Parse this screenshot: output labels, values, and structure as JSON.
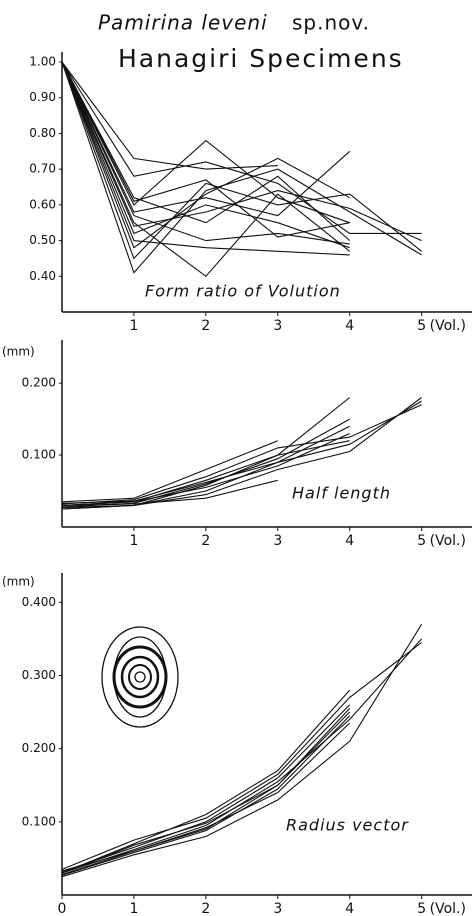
{
  "header": {
    "species": "Pamirina leveni",
    "suffix": "sp.nov.",
    "title": "Hanagiri Specimens"
  },
  "chart_data": [
    {
      "type": "line",
      "annotation": "Form ratio of Volution",
      "x_label": "(Vol.)",
      "color": "#111111",
      "x": [
        0,
        1,
        2,
        3,
        4,
        5
      ],
      "xlim": [
        0,
        5.7
      ],
      "xticks": [
        1,
        2,
        3,
        4,
        5
      ],
      "ylim": [
        0.3,
        1.0
      ],
      "yticks": [
        {
          "value": 0.4,
          "label": "0.40"
        },
        {
          "value": 0.5,
          "label": "0.50"
        },
        {
          "value": 0.6,
          "label": "0.60"
        },
        {
          "value": 0.7,
          "label": "0.70"
        },
        {
          "value": 0.8,
          "label": "0.80"
        },
        {
          "value": 0.9,
          "label": "0.90"
        },
        {
          "value": 1.0,
          "label": "1.00"
        }
      ],
      "series": [
        {
          "values": [
            1.0,
            0.73,
            0.7,
            0.71,
            null,
            null
          ]
        },
        {
          "values": [
            1.0,
            0.6,
            0.78,
            0.62,
            0.55,
            null
          ]
        },
        {
          "values": [
            1.0,
            0.41,
            0.64,
            0.7,
            0.58,
            0.46
          ]
        },
        {
          "values": [
            1.0,
            0.55,
            0.4,
            0.63,
            0.47,
            null
          ]
        },
        {
          "values": [
            1.0,
            0.5,
            0.48,
            0.47,
            0.46,
            null
          ]
        },
        {
          "values": [
            1.0,
            0.58,
            0.62,
            0.57,
            0.75,
            null
          ]
        },
        {
          "values": [
            1.0,
            0.68,
            0.72,
            0.66,
            0.52,
            0.52
          ]
        },
        {
          "values": [
            1.0,
            0.52,
            0.6,
            0.55,
            0.48,
            null
          ]
        },
        {
          "values": [
            1.0,
            0.45,
            0.66,
            0.6,
            0.63,
            0.47
          ]
        },
        {
          "values": [
            1.0,
            0.62,
            0.55,
            0.68,
            0.5,
            null
          ]
        },
        {
          "values": [
            1.0,
            0.57,
            0.5,
            0.52,
            0.49,
            null
          ]
        },
        {
          "values": [
            1.0,
            0.54,
            0.58,
            0.64,
            0.59,
            0.5
          ]
        },
        {
          "values": [
            1.0,
            0.61,
            0.67,
            0.51,
            0.55,
            null
          ]
        },
        {
          "values": [
            1.0,
            0.48,
            0.63,
            0.73,
            0.62,
            null
          ]
        }
      ]
    },
    {
      "type": "line",
      "annotation": "Half length",
      "x_label": "(Vol.)",
      "y_label": "(mm)",
      "color": "#111111",
      "x": [
        0,
        1,
        2,
        3,
        4,
        5
      ],
      "xlim": [
        0,
        5.7
      ],
      "xticks": [
        1,
        2,
        3,
        4,
        5
      ],
      "ylim": [
        0,
        0.26
      ],
      "yticks": [
        {
          "value": 0.1,
          "label": "0.100"
        },
        {
          "value": 0.2,
          "label": "0.200"
        }
      ],
      "series": [
        {
          "values": [
            0.035,
            0.04,
            0.08,
            0.12,
            null,
            null
          ]
        },
        {
          "values": [
            0.03,
            0.035,
            0.065,
            0.1,
            0.18,
            null
          ]
        },
        {
          "values": [
            0.028,
            0.033,
            0.06,
            0.095,
            0.15,
            null
          ]
        },
        {
          "values": [
            0.025,
            0.03,
            0.05,
            0.09,
            0.14,
            null
          ]
        },
        {
          "values": [
            0.03,
            0.035,
            0.055,
            0.085,
            0.13,
            null
          ]
        },
        {
          "values": [
            0.032,
            0.038,
            0.07,
            0.11,
            0.125,
            0.17
          ]
        },
        {
          "values": [
            0.027,
            0.03,
            0.045,
            0.08,
            0.105,
            0.18
          ]
        },
        {
          "values": [
            0.03,
            0.032,
            0.04,
            0.065,
            null,
            null
          ]
        },
        {
          "values": [
            0.025,
            0.03,
            0.058,
            0.1,
            0.12,
            null
          ]
        },
        {
          "values": [
            0.033,
            0.036,
            0.062,
            0.09,
            0.115,
            0.175
          ]
        }
      ]
    },
    {
      "type": "line",
      "annotation": "Radius vector",
      "x_label": "(Vol.)",
      "y_label": "(mm)",
      "color": "#111111",
      "x": [
        0,
        1,
        2,
        3,
        4,
        5
      ],
      "xlim": [
        0,
        5.7
      ],
      "xticks": [
        0,
        1,
        2,
        3,
        4,
        5
      ],
      "ylim": [
        0,
        0.44
      ],
      "yticks": [
        {
          "value": 0.1,
          "label": "0.100"
        },
        {
          "value": 0.2,
          "label": "0.200"
        },
        {
          "value": 0.3,
          "label": "0.300"
        },
        {
          "value": 0.4,
          "label": "0.400"
        }
      ],
      "series": [
        {
          "values": [
            0.03,
            0.07,
            0.11,
            0.17,
            0.28,
            null
          ]
        },
        {
          "values": [
            0.028,
            0.06,
            0.09,
            0.15,
            0.25,
            null
          ]
        },
        {
          "values": [
            0.032,
            0.065,
            0.1,
            0.16,
            0.26,
            null
          ]
        },
        {
          "values": [
            0.025,
            0.055,
            0.08,
            0.13,
            0.21,
            0.37
          ]
        },
        {
          "values": [
            0.03,
            0.062,
            0.095,
            0.155,
            0.24,
            0.35
          ]
        },
        {
          "values": [
            0.035,
            0.075,
            0.105,
            0.165,
            0.27,
            0.345
          ]
        },
        {
          "values": [
            0.027,
            0.058,
            0.088,
            0.145,
            0.245,
            null
          ]
        },
        {
          "values": [
            0.03,
            0.068,
            0.098,
            0.15,
            0.255,
            null
          ]
        },
        {
          "values": [
            0.033,
            0.06,
            0.092,
            0.14,
            0.235,
            null
          ]
        }
      ]
    }
  ]
}
